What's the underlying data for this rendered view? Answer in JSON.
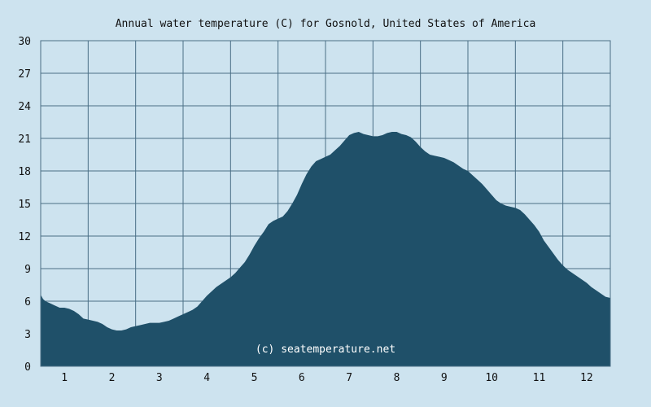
{
  "colors": {
    "background": "#cde3ef",
    "plot_background": "#cde3ef",
    "area_fill": "#1f5069",
    "grid": "#4a6f86",
    "text": "#111111",
    "watermark": "#ffffff"
  },
  "chart_data": {
    "type": "area",
    "title": "Annual water temperature (C) for Gosnold, United States of America",
    "xlabel": "",
    "ylabel": "",
    "watermark": "(c) seatemperature.net",
    "ylim": [
      0,
      30
    ],
    "yticks": [
      0,
      3,
      6,
      9,
      12,
      15,
      18,
      21,
      24,
      27,
      30
    ],
    "xlim": [
      0.5,
      12.5
    ],
    "xticks": [
      1,
      2,
      3,
      4,
      5,
      6,
      7,
      8,
      9,
      10,
      11,
      12
    ],
    "x_tick_labels": [
      "1",
      "2",
      "3",
      "4",
      "5",
      "6",
      "7",
      "8",
      "9",
      "10",
      "11",
      "12"
    ],
    "grid": true,
    "legend": "none",
    "x": [
      0.5,
      0.55,
      0.6,
      0.7,
      0.8,
      0.9,
      1.0,
      1.1,
      1.2,
      1.3,
      1.4,
      1.5,
      1.6,
      1.7,
      1.8,
      1.9,
      2.0,
      2.1,
      2.2,
      2.3,
      2.4,
      2.5,
      2.6,
      2.7,
      2.8,
      2.9,
      3.0,
      3.1,
      3.2,
      3.3,
      3.4,
      3.5,
      3.6,
      3.7,
      3.8,
      3.9,
      4.0,
      4.1,
      4.2,
      4.3,
      4.4,
      4.5,
      4.6,
      4.7,
      4.8,
      4.9,
      5.0,
      5.1,
      5.2,
      5.3,
      5.4,
      5.5,
      5.6,
      5.7,
      5.8,
      5.9,
      6.0,
      6.1,
      6.2,
      6.3,
      6.4,
      6.5,
      6.6,
      6.7,
      6.8,
      6.9,
      7.0,
      7.1,
      7.2,
      7.3,
      7.4,
      7.5,
      7.6,
      7.7,
      7.8,
      7.9,
      8.0,
      8.1,
      8.2,
      8.3,
      8.4,
      8.5,
      8.6,
      8.7,
      8.8,
      8.9,
      9.0,
      9.1,
      9.2,
      9.3,
      9.4,
      9.5,
      9.6,
      9.7,
      9.8,
      9.9,
      10.0,
      10.1,
      10.2,
      10.3,
      10.4,
      10.5,
      10.6,
      10.7,
      10.8,
      10.9,
      11.0,
      11.1,
      11.2,
      11.3,
      11.4,
      11.5,
      11.6,
      11.7,
      11.8,
      11.9,
      12.0,
      12.1,
      12.2,
      12.3,
      12.4,
      12.5
    ],
    "y": [
      6.6,
      6.2,
      6.0,
      5.8,
      5.6,
      5.4,
      5.4,
      5.3,
      5.1,
      4.8,
      4.4,
      4.3,
      4.2,
      4.1,
      3.9,
      3.6,
      3.4,
      3.3,
      3.3,
      3.4,
      3.6,
      3.7,
      3.8,
      3.9,
      4.0,
      4.0,
      4.0,
      4.1,
      4.2,
      4.4,
      4.6,
      4.8,
      5.0,
      5.2,
      5.5,
      6.0,
      6.5,
      6.9,
      7.3,
      7.6,
      7.9,
      8.2,
      8.6,
      9.1,
      9.6,
      10.3,
      11.1,
      11.8,
      12.4,
      13.1,
      13.4,
      13.6,
      13.8,
      14.3,
      15.0,
      15.8,
      16.8,
      17.7,
      18.4,
      18.9,
      19.1,
      19.3,
      19.5,
      19.9,
      20.3,
      20.8,
      21.3,
      21.5,
      21.6,
      21.4,
      21.3,
      21.2,
      21.2,
      21.3,
      21.5,
      21.6,
      21.6,
      21.4,
      21.3,
      21.1,
      20.7,
      20.2,
      19.8,
      19.5,
      19.4,
      19.3,
      19.2,
      19.0,
      18.8,
      18.5,
      18.2,
      18.0,
      17.6,
      17.2,
      16.8,
      16.3,
      15.8,
      15.3,
      15.0,
      14.8,
      14.7,
      14.6,
      14.4,
      14.0,
      13.5,
      13.0,
      12.4,
      11.6,
      11.0,
      10.4,
      9.8,
      9.3,
      8.9,
      8.6,
      8.3,
      8.0,
      7.7,
      7.3,
      7.0,
      6.7,
      6.4,
      6.3
    ]
  }
}
